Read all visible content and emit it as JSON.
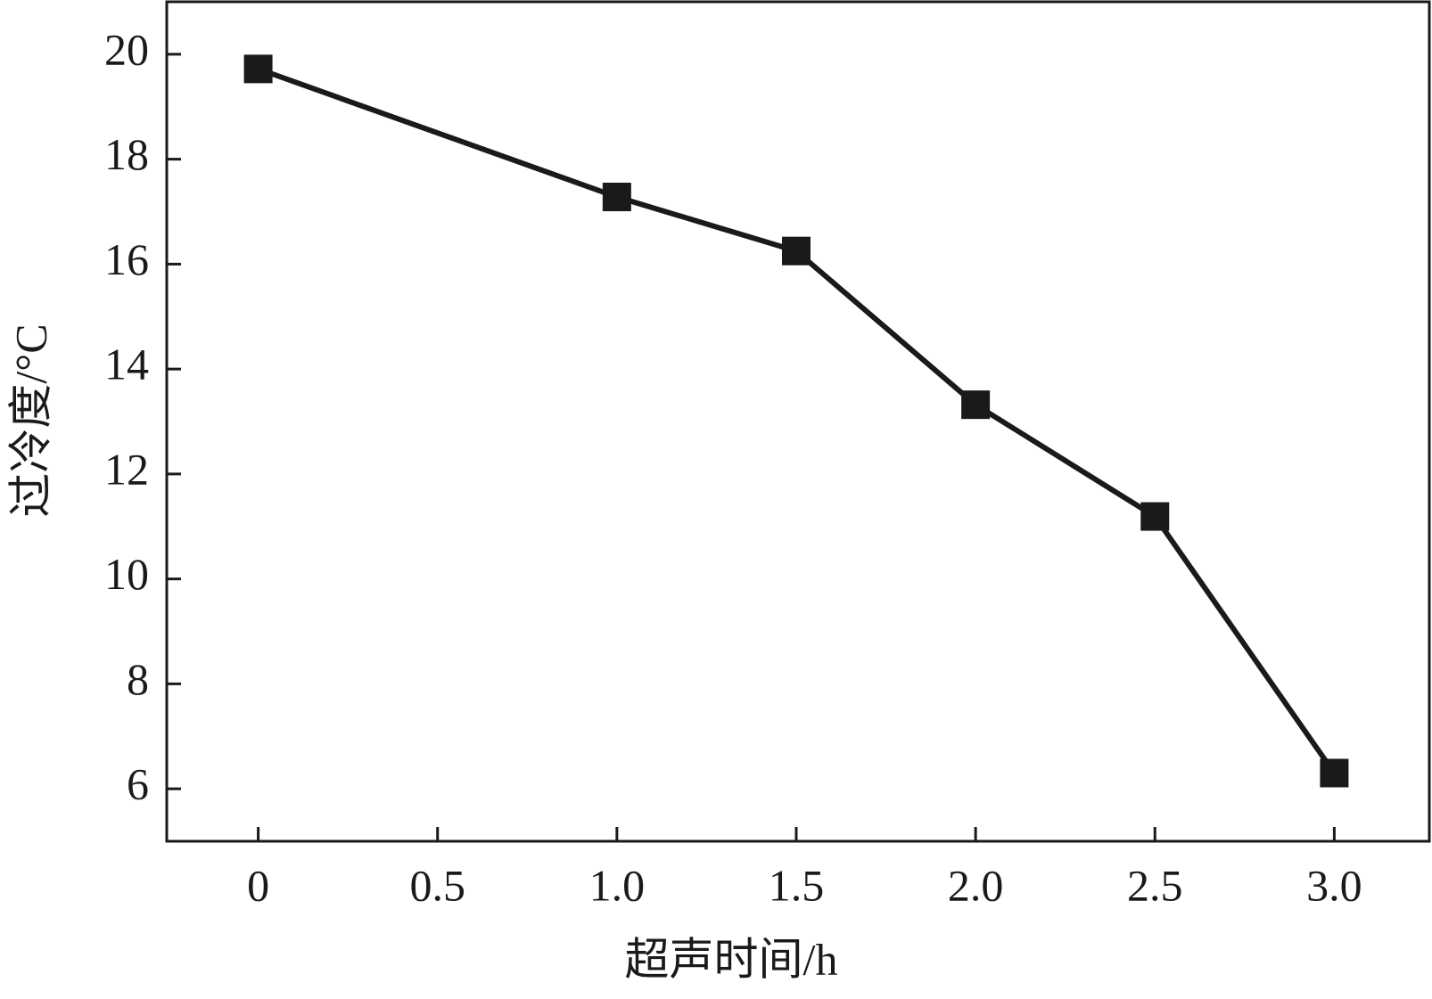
{
  "chart_data": {
    "type": "line",
    "x_label": "超声时间/h",
    "y_label": "过冷度/°C",
    "x": [
      0,
      1,
      1.5,
      2,
      2.5,
      3
    ],
    "series": [
      {
        "color": "#1a1a1a",
        "values": [
          19.72,
          17.28,
          16.25,
          13.32,
          11.19,
          6.3
        ]
      }
    ],
    "xlim": [
      -0.255,
      3.265
    ],
    "xticks": [
      0,
      0.5,
      {
        "value": 1,
        "label": "1.0"
      },
      1.5,
      {
        "value": 2,
        "label": "2.0"
      },
      2.5,
      {
        "value": 3,
        "label": "3.0"
      }
    ],
    "ylim": [
      5,
      21
    ],
    "yticks": [
      6,
      8,
      10,
      12,
      14,
      16,
      18,
      20
    ]
  }
}
